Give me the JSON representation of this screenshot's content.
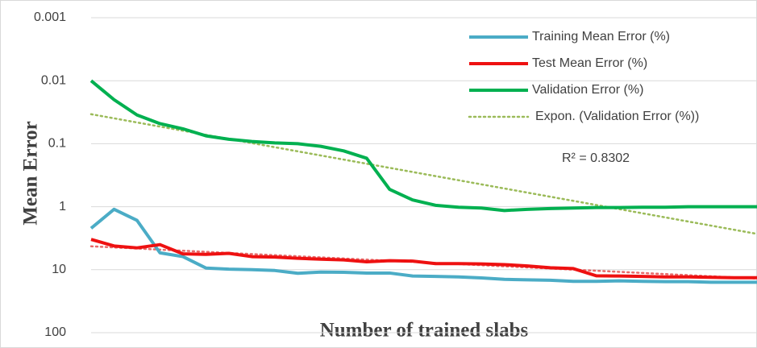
{
  "chart_data": {
    "type": "line",
    "x_label": "Number of trained slabs",
    "y_label": "Mean Error",
    "categories": [
      null,
      null,
      null,
      null,
      null,
      null,
      null,
      null,
      null,
      null,
      null,
      null,
      null,
      null,
      null,
      null,
      null,
      null,
      null,
      null,
      null,
      null,
      null,
      null,
      null,
      null,
      null,
      null,
      null,
      null
    ],
    "series": [
      {
        "name": "Training Mean Error (%)",
        "color": "#4bacc6",
        "values": [
          2.2,
          1.1,
          1.65,
          5.4,
          6.2,
          9.4,
          9.8,
          10,
          10.3,
          11.4,
          10.9,
          11,
          11.3,
          11.3,
          12.6,
          12.8,
          13,
          13.5,
          14.2,
          14.5,
          14.7,
          15.3,
          15.3,
          15,
          15.3,
          15.5,
          15.5,
          15.8,
          15.8,
          15.8
        ]
      },
      {
        "name": "Test Mean Error (%)",
        "color": "#ee1111",
        "values": [
          3.3,
          4.2,
          4.5,
          4.0,
          5.6,
          5.7,
          5.5,
          6.2,
          6.3,
          6.6,
          6.8,
          7.0,
          7.5,
          7.2,
          7.3,
          8.0,
          8.0,
          8.1,
          8.3,
          8.7,
          9.3,
          9.6,
          12.5,
          12.6,
          12.8,
          13,
          13,
          13.2,
          13.4,
          13.4
        ]
      },
      {
        "name": "Validation Error (%)",
        "color": "#00b050",
        "values": [
          0.01,
          0.02,
          0.035,
          0.048,
          0.058,
          0.075,
          0.085,
          0.092,
          0.097,
          0.1,
          0.11,
          0.13,
          0.17,
          0.53,
          0.78,
          0.95,
          1.02,
          1.05,
          1.15,
          1.1,
          1.07,
          1.05,
          1.03,
          1.03,
          1.02,
          1.02,
          1.0,
          1.0,
          1.0,
          1.0
        ]
      }
    ],
    "trendlines": [
      {
        "name": "Expon. (Validation Error (%))",
        "color": "#9bbb59",
        "values": [
          0.034,
          2.7
        ]
      },
      {
        "color": "#e86a6a",
        "values": [
          4.25,
          13.8
        ]
      }
    ],
    "annotation": "R² = 0.8302",
    "log_scale": true,
    "y_reversed": true,
    "ylim": [
      0.001,
      100
    ],
    "yticks": [
      0.001,
      0.01,
      0.1,
      1,
      10,
      100
    ],
    "grid": true,
    "legend": "top-right"
  }
}
